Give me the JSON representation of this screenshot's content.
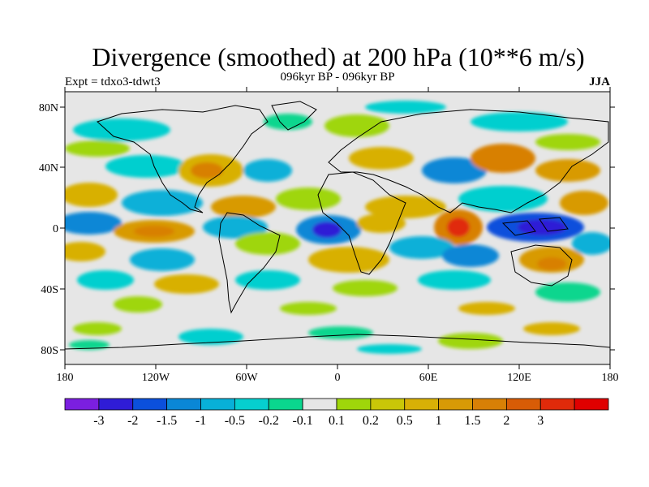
{
  "title": "Divergence (smoothed) at 200 hPa (10**6 m/s)",
  "left_label": "Expt = tdxo3-tdwt3",
  "center_label": "096kyr BP - 096kyr BP",
  "right_label": "JJA",
  "lat_ticks": [
    "80N",
    "40N",
    "0",
    "40S",
    "80S"
  ],
  "lon_ticks": [
    "180",
    "120W",
    "60W",
    "0",
    "60E",
    "120E",
    "180"
  ],
  "colorbar": {
    "colors": [
      "#7b1fe0",
      "#2f1cd6",
      "#0b50dc",
      "#0a87d6",
      "#08b0d8",
      "#06cfcf",
      "#0ad68e",
      "#e6e6e6",
      "#9fd60a",
      "#c9c708",
      "#d8b006",
      "#d89a06",
      "#d88006",
      "#d85c06",
      "#e02a0a",
      "#e00000"
    ],
    "labels": [
      "-3",
      "-2",
      "-1.5",
      "-1",
      "-0.5",
      "-0.2",
      "-0.1",
      "0.1",
      "0.2",
      "0.5",
      "1",
      "1.5",
      "2",
      "3"
    ]
  }
}
